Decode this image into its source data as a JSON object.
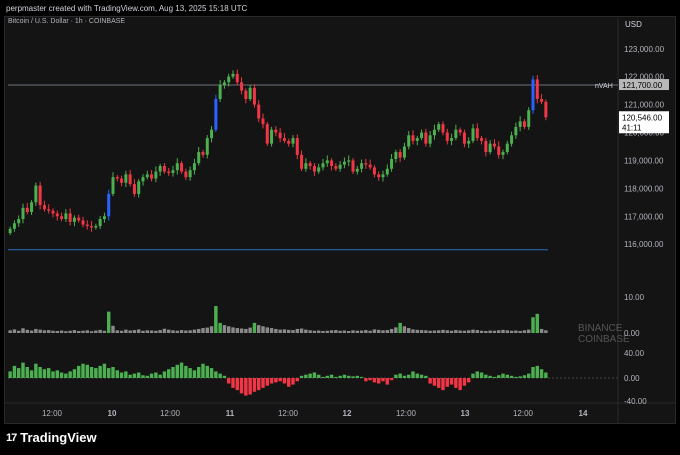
{
  "header": {
    "caption": "perpmaster created with TradingView.com, Aug 13, 2025 15:18 UTC"
  },
  "chart_title": "Bitcoin / U.S. Dollar · 1h · COINBASE",
  "currency": "USD",
  "colors": {
    "up": "#4caf50",
    "down": "#f23645",
    "flag": "#2962ff",
    "volume": "#8a8a8a"
  },
  "chart_data": [
    {
      "type": "candlestick",
      "title": "Bitcoin / U.S. Dollar · 1h · COINBASE",
      "ylim": [
        114000,
        123600
      ],
      "y_ticks": [
        "123,000.00",
        "122,000.00",
        "121,000.00",
        "120,000.00",
        "119,000.00",
        "118,000.00",
        "117,000.00",
        "116,000.00"
      ],
      "y_tick_values": [
        123000,
        122000,
        121000,
        120000,
        119000,
        118000,
        117000,
        116000
      ],
      "x_ticks": [
        "12:00",
        "10",
        "12:00",
        "11",
        "12:00",
        "12",
        "12:00",
        "13",
        "12:00",
        "14"
      ],
      "lines": [
        {
          "label": "nVAH",
          "value": 121700,
          "color": "#6a6f7a"
        },
        {
          "label": "",
          "value": 115800,
          "color": "#2a6fbf"
        }
      ],
      "price_labels": [
        {
          "text": "121,700.00",
          "value": 121700
        },
        {
          "text": "120,546.00",
          "value": 120546,
          "sub": "41:11"
        }
      ],
      "close": [
        116550,
        116750,
        116900,
        117300,
        117150,
        117500,
        118100,
        117400,
        117250,
        117200,
        117100,
        117000,
        116900,
        117100,
        116800,
        116950,
        116850,
        116700,
        116650,
        116600,
        116650,
        116900,
        117000,
        117800,
        118400,
        118350,
        118200,
        118500,
        118150,
        117800,
        118250,
        118400,
        118500,
        118350,
        118600,
        118800,
        118600,
        118550,
        118650,
        118900,
        118600,
        118400,
        118650,
        118900,
        119300,
        119200,
        119800,
        120100,
        121200,
        121700,
        121800,
        122000,
        122100,
        121800,
        121500,
        121200,
        121600,
        121000,
        120500,
        120300,
        119600,
        120100,
        120000,
        119800,
        119700,
        119600,
        119800,
        119200,
        118700,
        118900,
        118800,
        118600,
        118750,
        118900,
        119000,
        118800,
        118700,
        118850,
        118950,
        119000,
        118600,
        118700,
        118900,
        118850,
        118750,
        118500,
        118400,
        118500,
        118700,
        119050,
        119300,
        119100,
        119500,
        119900,
        119700,
        119800,
        120000,
        119600,
        119900,
        120100,
        120300,
        120000,
        119700,
        119800,
        120100,
        120000,
        119600,
        119700,
        120150,
        119800,
        119700,
        119300,
        119600,
        119500,
        119200,
        119300,
        119600,
        119900,
        120200,
        120400,
        120200,
        120800,
        121900,
        121200,
        121100,
        120546
      ],
      "volume_label": "10.00",
      "volume_zero": "0.00",
      "volume": [
        1.2,
        1.6,
        1.0,
        2.1,
        1.4,
        1.1,
        1.8,
        1.5,
        1.2,
        1.3,
        1.0,
        0.9,
        1.1,
        0.8,
        1.0,
        1.3,
        0.9,
        1.0,
        1.2,
        0.8,
        1.1,
        1.4,
        1.0,
        9.5,
        3.2,
        1.2,
        1.0,
        1.5,
        1.1,
        1.3,
        1.6,
        1.0,
        1.2,
        1.1,
        1.0,
        1.3,
        1.9,
        1.5,
        1.2,
        1.0,
        1.3,
        1.1,
        1.2,
        1.5,
        1.8,
        2.2,
        2.4,
        3.0,
        12.0,
        4.5,
        3.5,
        3.0,
        2.5,
        2.2,
        2.0,
        1.8,
        2.4,
        4.5,
        3.5,
        3.0,
        2.5,
        2.2,
        1.8,
        1.5,
        1.6,
        1.4,
        1.3,
        1.8,
        2.0,
        1.5,
        1.2,
        1.0,
        1.1,
        0.9,
        1.0,
        1.2,
        1.3,
        1.0,
        1.1,
        0.9,
        1.2,
        1.0,
        1.1,
        1.3,
        1.0,
        1.6,
        1.4,
        1.2,
        1.3,
        1.8,
        2.5,
        4.5,
        3.0,
        2.2,
        1.6,
        1.4,
        1.3,
        1.2,
        1.0,
        1.1,
        1.2,
        1.4,
        1.2,
        1.0,
        1.3,
        1.1,
        1.0,
        1.2,
        1.5,
        1.3,
        1.0,
        0.9,
        1.1,
        1.0,
        1.2,
        1.4,
        1.2,
        1.0,
        1.1,
        0.9,
        1.2,
        1.5,
        7.0,
        8.5,
        1.8,
        1.2
      ],
      "volume_legend": [
        "BINANCE",
        "COINBASE"
      ],
      "delta_labels": [
        "40.00",
        "0.00",
        "-40.00"
      ],
      "delta_ylim": [
        -40,
        40
      ],
      "delta": [
        12,
        22,
        18,
        28,
        20,
        14,
        26,
        20,
        16,
        18,
        12,
        14,
        10,
        8,
        12,
        16,
        22,
        26,
        24,
        20,
        18,
        22,
        26,
        18,
        20,
        14,
        10,
        12,
        6,
        8,
        10,
        5,
        4,
        8,
        10,
        6,
        12,
        16,
        20,
        24,
        28,
        22,
        18,
        14,
        20,
        26,
        22,
        18,
        12,
        8,
        4,
        -10,
        -18,
        -22,
        -28,
        -32,
        -30,
        -25,
        -22,
        -18,
        -14,
        -10,
        -8,
        -6,
        -10,
        -16,
        -12,
        -6,
        4,
        6,
        8,
        10,
        6,
        2,
        4,
        6,
        2,
        4,
        6,
        4,
        3,
        4,
        2,
        -6,
        -4,
        -8,
        -10,
        -6,
        -12,
        -4,
        6,
        8,
        4,
        6,
        12,
        8,
        6,
        4,
        -10,
        -14,
        -18,
        -22,
        -16,
        -12,
        -18,
        -22,
        -14,
        -8,
        8,
        12,
        10,
        6,
        4,
        2,
        5,
        8,
        6,
        4,
        2,
        3,
        5,
        8,
        20,
        22,
        16,
        10
      ]
    }
  ]
}
